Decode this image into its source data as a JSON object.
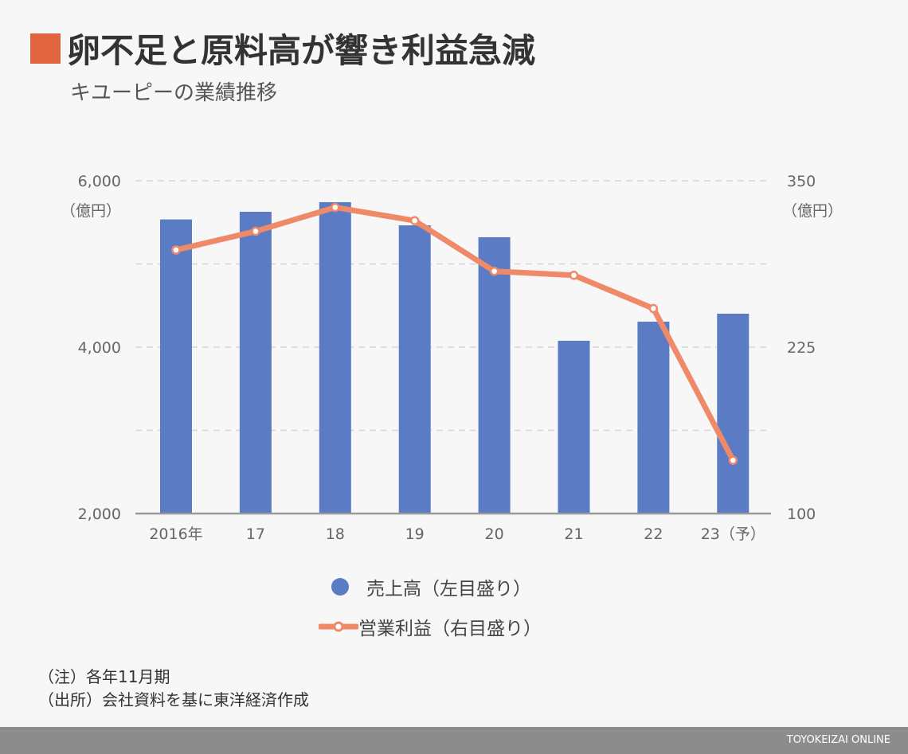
{
  "title": "卵不足と原料高が響き利益急減",
  "subtitle": "キユーピーの業績推移",
  "chart_data": {
    "type": "bar+line",
    "categories": [
      "2016年",
      "17",
      "18",
      "19",
      "20",
      "21",
      "22",
      "23（予）"
    ],
    "series": [
      {
        "name": "売上高（左目盛り）",
        "type": "bar",
        "axis": "left",
        "color": "#5b7bc4",
        "values": [
          5535,
          5627,
          5742,
          5464,
          5321,
          4077,
          4306,
          4402
        ]
      },
      {
        "name": "営業利益（右目盛り）",
        "type": "line",
        "axis": "right",
        "color": "#ef8a69",
        "values": [
          298,
          312,
          330,
          320,
          282,
          279,
          254,
          140
        ]
      }
    ],
    "left_axis": {
      "ticks": [
        "6,000",
        "4,000",
        "2,000"
      ],
      "unit": "（億円）",
      "ylim": [
        2000,
        6000
      ]
    },
    "right_axis": {
      "ticks": [
        "350",
        "225",
        "100"
      ],
      "unit": "（億円）",
      "ylim": [
        100,
        350
      ]
    }
  },
  "legend": {
    "bar": "売上高（左目盛り）",
    "line": "営業利益（右目盛り）"
  },
  "notes": [
    "（注）各年11月期",
    "（出所）会社資料を基に東洋経済作成"
  ],
  "footer": "TOYOKEIZAI ONLINE"
}
